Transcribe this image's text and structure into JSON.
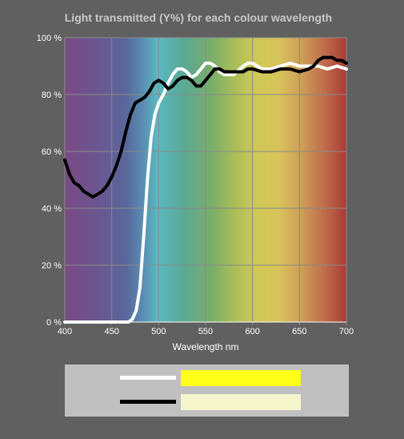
{
  "colors": {
    "background": "#606060",
    "grid": "#8a8a8a",
    "series_white": "#ffffff",
    "series_black": "#000000",
    "legend_bg": "#c0c0c0"
  },
  "chart_data": {
    "type": "line",
    "title": "Light transmitted (Y%) for each colour wavelength",
    "xlabel": "Wavelength nm",
    "ylabel": "",
    "xlim": [
      400,
      700
    ],
    "ylim": [
      0,
      100
    ],
    "x_ticks": [
      "400",
      "450",
      "500",
      "550",
      "600",
      "650",
      "700"
    ],
    "y_ticks": [
      "0 %",
      "20 %",
      "40 %",
      "60 %",
      "80 %",
      "100 %"
    ],
    "background": "visible spectrum gradient",
    "grid": true,
    "series": [
      {
        "color": "#ffffff",
        "swatch_color": "#ffff1a",
        "points": [
          [
            400,
            0
          ],
          [
            460,
            0
          ],
          [
            468,
            0
          ],
          [
            472,
            1
          ],
          [
            476,
            4
          ],
          [
            480,
            12
          ],
          [
            484,
            30
          ],
          [
            488,
            50
          ],
          [
            492,
            65
          ],
          [
            496,
            73
          ],
          [
            500,
            77
          ],
          [
            505,
            80
          ],
          [
            510,
            84
          ],
          [
            515,
            87
          ],
          [
            520,
            89
          ],
          [
            525,
            89
          ],
          [
            530,
            88
          ],
          [
            535,
            86
          ],
          [
            540,
            87
          ],
          [
            545,
            89
          ],
          [
            550,
            91
          ],
          [
            555,
            91
          ],
          [
            560,
            90
          ],
          [
            565,
            88
          ],
          [
            570,
            87
          ],
          [
            580,
            87
          ],
          [
            590,
            90
          ],
          [
            595,
            91
          ],
          [
            600,
            91
          ],
          [
            605,
            90
          ],
          [
            610,
            89
          ],
          [
            620,
            89
          ],
          [
            630,
            90
          ],
          [
            640,
            91
          ],
          [
            650,
            90
          ],
          [
            660,
            90
          ],
          [
            670,
            90
          ],
          [
            680,
            89
          ],
          [
            690,
            90
          ],
          [
            700,
            89
          ]
        ]
      },
      {
        "color": "#000000",
        "swatch_color": "#f5f5cc",
        "points": [
          [
            400,
            57
          ],
          [
            405,
            52
          ],
          [
            410,
            49
          ],
          [
            415,
            48
          ],
          [
            420,
            46
          ],
          [
            425,
            45
          ],
          [
            430,
            44
          ],
          [
            435,
            45
          ],
          [
            440,
            46
          ],
          [
            445,
            48
          ],
          [
            450,
            51
          ],
          [
            455,
            55
          ],
          [
            460,
            60
          ],
          [
            465,
            67
          ],
          [
            470,
            73
          ],
          [
            475,
            77
          ],
          [
            480,
            78
          ],
          [
            485,
            79
          ],
          [
            490,
            81
          ],
          [
            495,
            84
          ],
          [
            500,
            85
          ],
          [
            505,
            84
          ],
          [
            510,
            82
          ],
          [
            515,
            83
          ],
          [
            520,
            85
          ],
          [
            525,
            86
          ],
          [
            530,
            86
          ],
          [
            535,
            85
          ],
          [
            540,
            83
          ],
          [
            545,
            83
          ],
          [
            550,
            85
          ],
          [
            555,
            87
          ],
          [
            560,
            89
          ],
          [
            565,
            89
          ],
          [
            570,
            88
          ],
          [
            575,
            88
          ],
          [
            580,
            88
          ],
          [
            590,
            88
          ],
          [
            595,
            89
          ],
          [
            600,
            89
          ],
          [
            610,
            88
          ],
          [
            620,
            88
          ],
          [
            630,
            89
          ],
          [
            640,
            89
          ],
          [
            650,
            88
          ],
          [
            660,
            89
          ],
          [
            665,
            90
          ],
          [
            670,
            92
          ],
          [
            675,
            93
          ],
          [
            680,
            93
          ],
          [
            685,
            93
          ],
          [
            690,
            92
          ],
          [
            695,
            92
          ],
          [
            700,
            91
          ]
        ]
      }
    ]
  }
}
